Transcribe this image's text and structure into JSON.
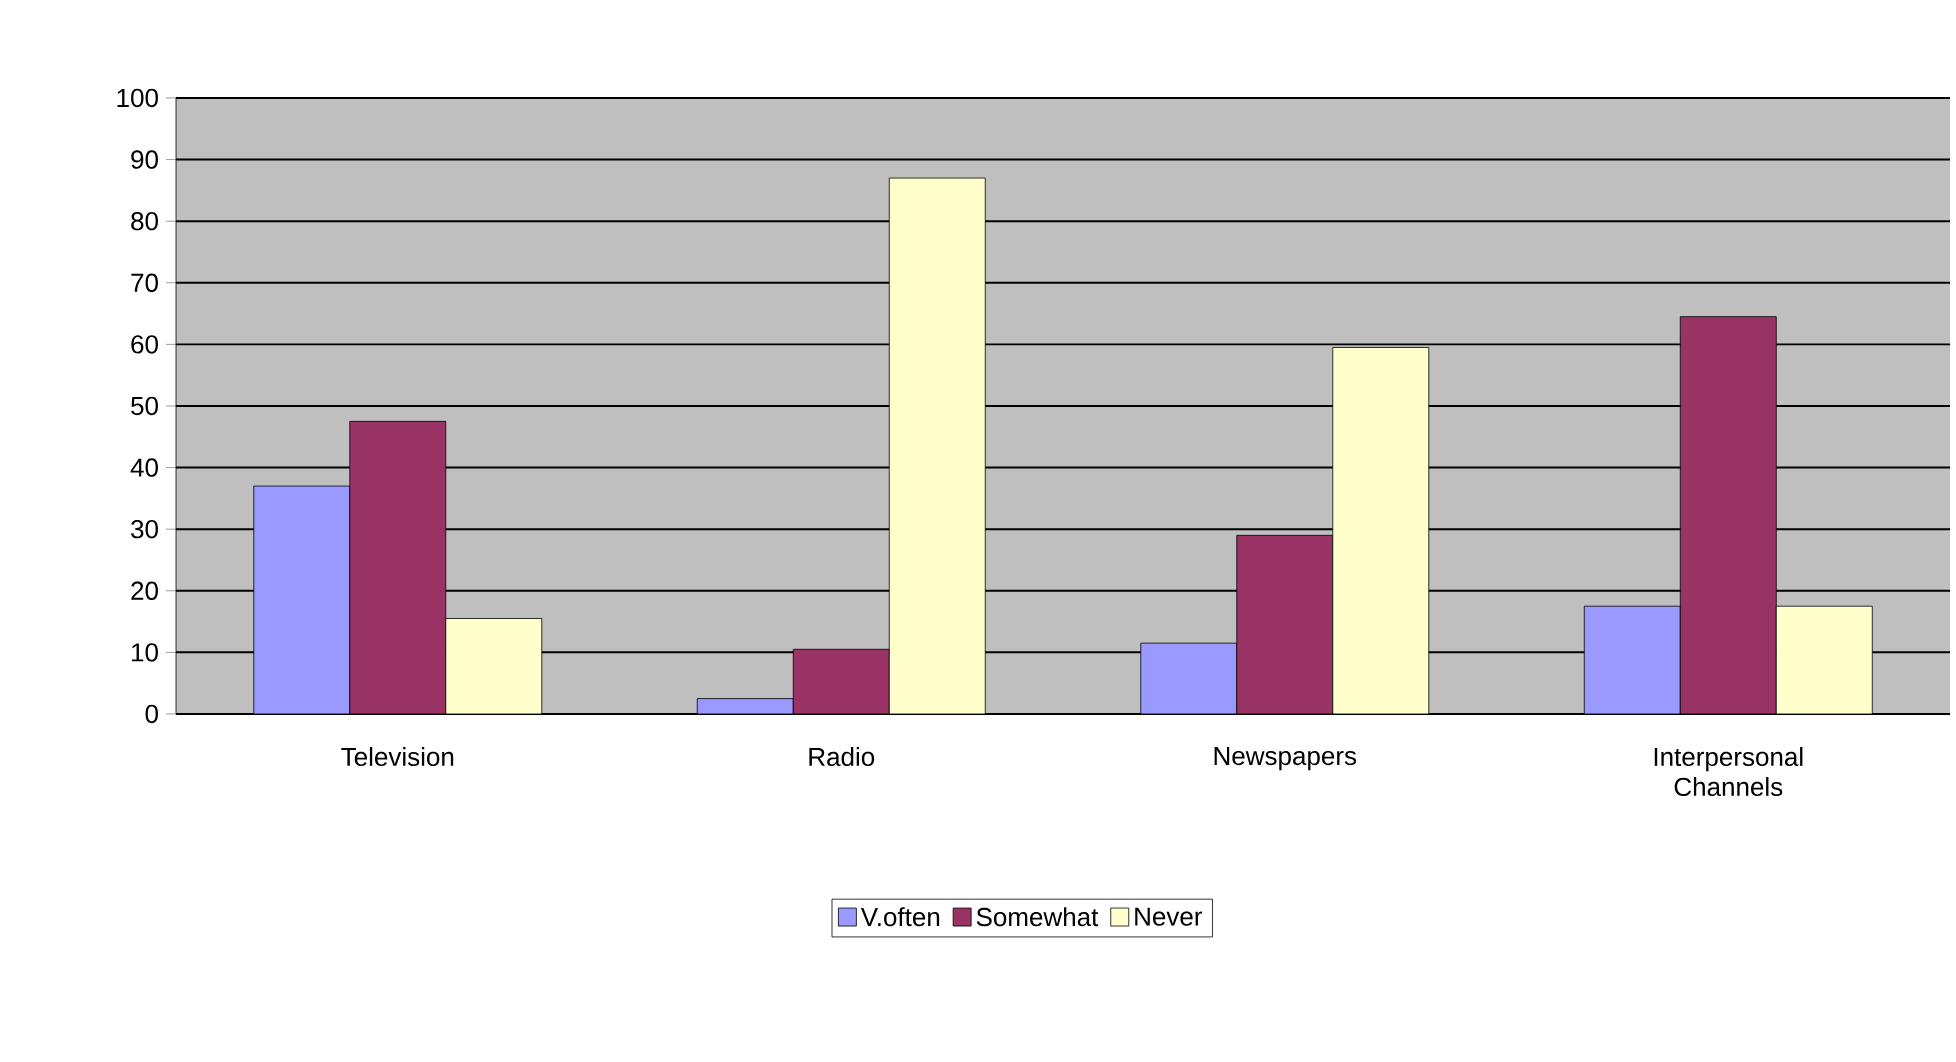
{
  "chart_data": {
    "type": "bar",
    "categories": [
      "Television",
      "Radio",
      "Newspapers",
      "Interpersonal Channels"
    ],
    "series": [
      {
        "name": "V.often",
        "color": "#9999ff",
        "values": [
          37,
          2.5,
          11.5,
          17.5
        ]
      },
      {
        "name": "Somewhat",
        "color": "#993366",
        "values": [
          47.5,
          10.5,
          29,
          64.5
        ]
      },
      {
        "name": "Never",
        "color": "#ffffcc",
        "values": [
          15.5,
          87,
          59.5,
          17.5
        ]
      }
    ],
    "ylim": [
      0,
      100
    ],
    "yticks": [
      0,
      10,
      20,
      30,
      40,
      50,
      60,
      70,
      80,
      90,
      100
    ],
    "grid": "y",
    "legend": "bottom"
  }
}
